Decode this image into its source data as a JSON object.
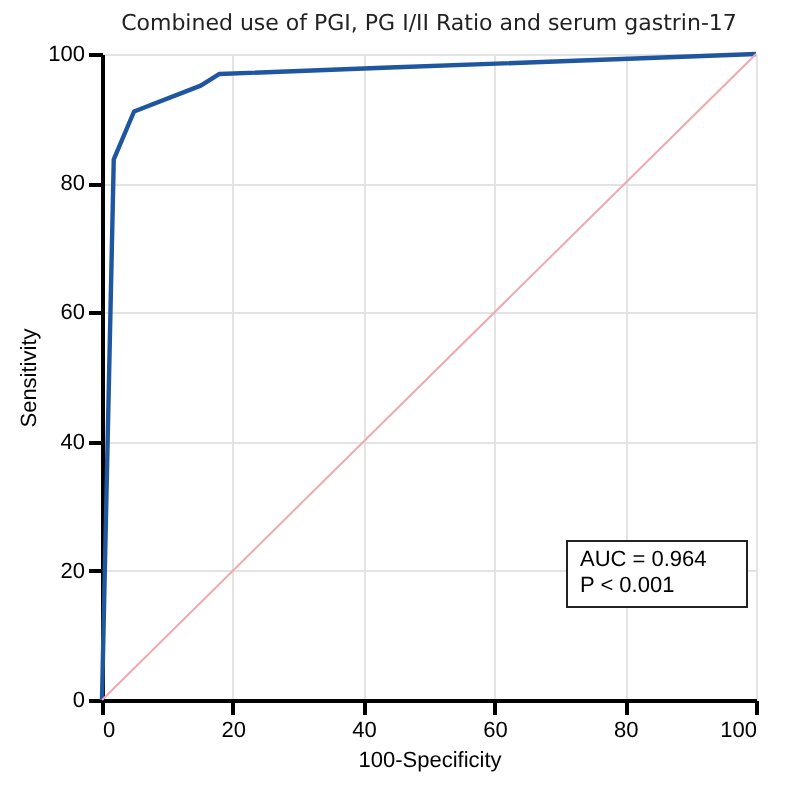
{
  "chart_data": {
    "type": "line",
    "title": "Combined use of PGI, PG I/II Ratio and serum gastrin-17",
    "xlabel": "100-Specificity",
    "ylabel": "Sensitivity",
    "series": [
      {
        "color": "#1f56a0",
        "x": [
          0,
          1.8,
          4.9,
          15.1,
          17.9,
          44,
          100
        ],
        "values": [
          0,
          83.7,
          91.1,
          95.1,
          96.9,
          97.9,
          100
        ]
      },
      {
        "color": "#f0a8b0",
        "x": [
          0,
          100
        ],
        "values": [
          0,
          100
        ]
      }
    ],
    "xlim": [
      0,
      100
    ],
    "ylim": [
      0,
      100
    ],
    "xticks": [
      0,
      20,
      40,
      60,
      80,
      100
    ],
    "yticks": [
      0,
      20,
      40,
      60,
      80,
      100
    ],
    "grid": true,
    "annotations": [
      "AUC = 0.964",
      "P < 0.001"
    ]
  }
}
